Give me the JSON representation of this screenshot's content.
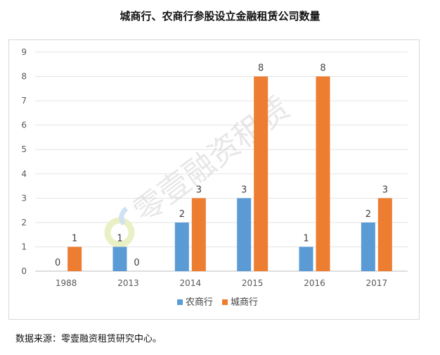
{
  "title": "城商行、农商行参股设立金融租赁公司数量",
  "source": "数据来源：零壹融资租赁研究中心。",
  "watermark": "零壹融资租赁",
  "chart_data": {
    "type": "bar",
    "title": "城商行、农商行参股设立金融租赁公司数量",
    "categories": [
      "1988",
      "2013",
      "2014",
      "2015",
      "2016",
      "2017"
    ],
    "series": [
      {
        "name": "农商行",
        "color": "#5b9bd5",
        "values": [
          0,
          1,
          2,
          3,
          1,
          2
        ]
      },
      {
        "name": "城商行",
        "color": "#ed7d31",
        "values": [
          1,
          0,
          3,
          8,
          8,
          3
        ]
      }
    ],
    "yticks": [
      0,
      1,
      2,
      3,
      4,
      5,
      6,
      7,
      8,
      9
    ],
    "ylim": [
      0,
      9
    ],
    "grid": true,
    "legend": "bottom",
    "data_labels": true
  }
}
